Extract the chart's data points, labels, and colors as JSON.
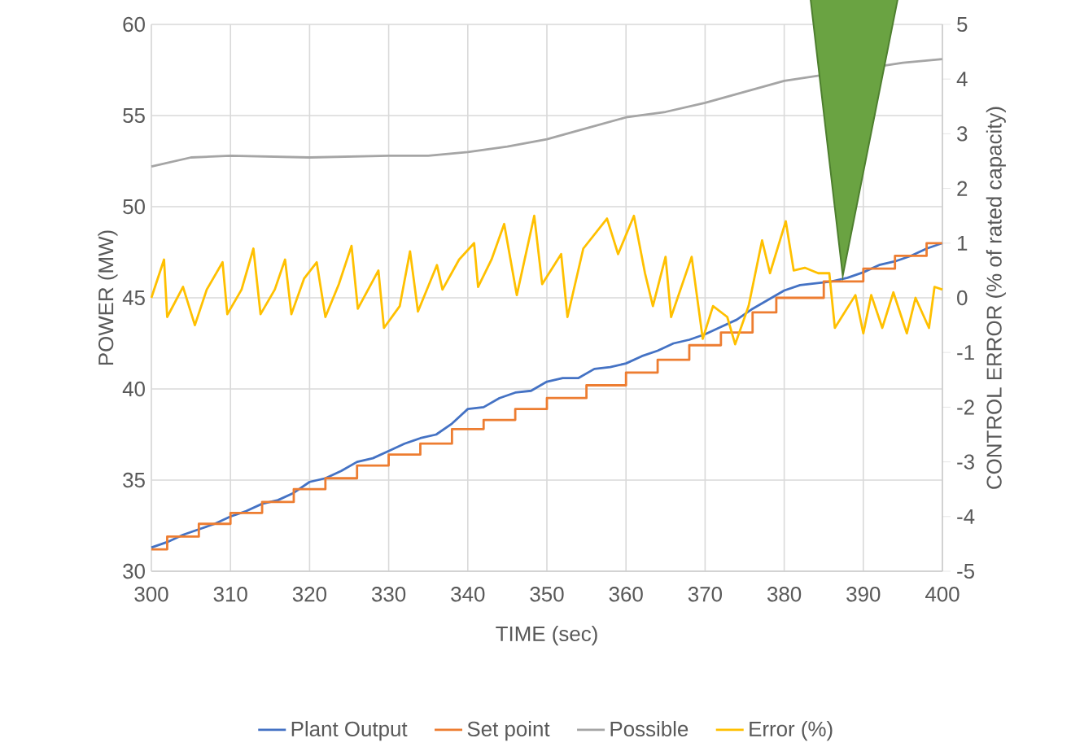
{
  "chart_data": {
    "type": "line",
    "xlabel": "TIME (sec)",
    "ylabel": "POWER (MW)",
    "y2label": "CONTROL ERROR (% of rated capacity)",
    "xlim": [
      300,
      400
    ],
    "xticks": [
      300,
      310,
      320,
      330,
      340,
      350,
      360,
      370,
      380,
      390,
      400
    ],
    "ylim": [
      30,
      60
    ],
    "yticks": [
      30,
      35,
      40,
      45,
      50,
      55,
      60
    ],
    "y2lim": [
      -5,
      5
    ],
    "y2ticks": [
      -5,
      -4,
      -3,
      -2,
      -1,
      0,
      1,
      2,
      3,
      4,
      5
    ],
    "grid": true,
    "legend": "bottom",
    "marker": "none",
    "line_style": "solid",
    "series": [
      {
        "name": "Plant Output",
        "color": "#4472c4",
        "x": [
          300,
          302,
          304,
          306,
          308,
          310,
          312,
          314,
          316,
          318,
          320,
          322,
          324,
          326,
          328,
          330,
          332,
          334,
          336,
          338,
          340,
          342,
          344,
          346,
          348,
          350,
          352,
          354,
          356,
          358,
          360,
          362,
          364,
          366,
          368,
          370,
          372,
          374,
          376,
          378,
          380,
          382,
          384,
          386,
          388,
          390,
          392,
          394,
          396,
          398,
          400
        ],
        "values": [
          31.3,
          31.6,
          32.0,
          32.3,
          32.6,
          33.0,
          33.3,
          33.7,
          33.9,
          34.3,
          34.9,
          35.1,
          35.5,
          36.0,
          36.2,
          36.6,
          37.0,
          37.3,
          37.5,
          38.1,
          38.9,
          39.0,
          39.5,
          39.8,
          39.9,
          40.4,
          40.6,
          40.6,
          41.1,
          41.2,
          41.4,
          41.8,
          42.1,
          42.5,
          42.7,
          43.0,
          43.4,
          43.8,
          44.4,
          44.9,
          45.4,
          45.7,
          45.8,
          45.9,
          46.1,
          46.4,
          46.8,
          47.0,
          47.3,
          47.7,
          48.0
        ]
      },
      {
        "name": "Set point",
        "color": "#ed7d31",
        "type": "step",
        "x": [
          300,
          302,
          306,
          310,
          314,
          318,
          322,
          326,
          330,
          334,
          338,
          342,
          346,
          350,
          355,
          360,
          364,
          368,
          372,
          376,
          379,
          385,
          390,
          394,
          398,
          400
        ],
        "values": [
          31.2,
          31.9,
          32.6,
          33.2,
          33.8,
          34.5,
          35.1,
          35.8,
          36.4,
          37.0,
          37.8,
          38.3,
          38.9,
          39.5,
          40.2,
          40.9,
          41.6,
          42.4,
          43.1,
          44.2,
          45.0,
          45.9,
          46.6,
          47.3,
          48.0,
          48.0
        ]
      },
      {
        "name": "Possible",
        "color": "#a5a5a5",
        "x": [
          300,
          305,
          310,
          320,
          330,
          335,
          340,
          345,
          350,
          355,
          360,
          365,
          370,
          375,
          380,
          385,
          387,
          390,
          395,
          400
        ],
        "values": [
          52.2,
          52.7,
          52.8,
          52.7,
          52.8,
          52.8,
          53.0,
          53.3,
          53.7,
          54.3,
          54.9,
          55.2,
          55.7,
          56.3,
          56.9,
          null,
          null,
          null,
          57.9,
          58.1
        ]
      },
      {
        "name": "Error (%)",
        "color": "#ffc000",
        "axis": "y2",
        "x": [
          300,
          301.6,
          302,
          304,
          305.5,
          307,
          309,
          309.6,
          311.4,
          312.9,
          313.8,
          315.6,
          316.9,
          317.7,
          319.3,
          320.9,
          322,
          323.7,
          325.3,
          326.1,
          328.7,
          329.4,
          331.4,
          332.7,
          333.7,
          336.1,
          336.8,
          338.9,
          340.8,
          341.3,
          343.0,
          344.6,
          346.2,
          348.4,
          349.4,
          351.8,
          352.6,
          354.6,
          357.6,
          359.0,
          361.0,
          362.4,
          363.4,
          365.0,
          365.7,
          368.3,
          369.7,
          371.0,
          372.8,
          373.8,
          375.5,
          377.2,
          378.2,
          380.2,
          381.2,
          382.6,
          384.3,
          385.7,
          386.4,
          389.0,
          390.0,
          391.0,
          392.4,
          393.8,
          395.5,
          396.6,
          398.3,
          399.0,
          400
        ],
        "values": [
          0.0,
          0.7,
          -0.35,
          0.2,
          -0.5,
          0.15,
          0.65,
          -0.3,
          0.15,
          0.9,
          -0.3,
          0.15,
          0.7,
          -0.3,
          0.35,
          0.65,
          -0.35,
          0.25,
          0.95,
          -0.2,
          0.5,
          -0.55,
          -0.15,
          0.85,
          -0.25,
          0.6,
          0.15,
          0.7,
          1.0,
          0.2,
          0.7,
          1.35,
          0.05,
          1.5,
          0.25,
          0.8,
          -0.35,
          0.9,
          1.45,
          0.8,
          1.5,
          0.45,
          -0.15,
          0.75,
          -0.35,
          0.75,
          -0.75,
          -0.15,
          -0.35,
          -0.85,
          -0.15,
          1.05,
          0.45,
          1.4,
          0.5,
          0.55,
          0.45,
          0.45,
          -0.55,
          0.05,
          -0.65,
          0.05,
          -0.55,
          0.1,
          -0.65,
          0.0,
          -0.55,
          0.2,
          0.15
        ]
      }
    ]
  }
}
